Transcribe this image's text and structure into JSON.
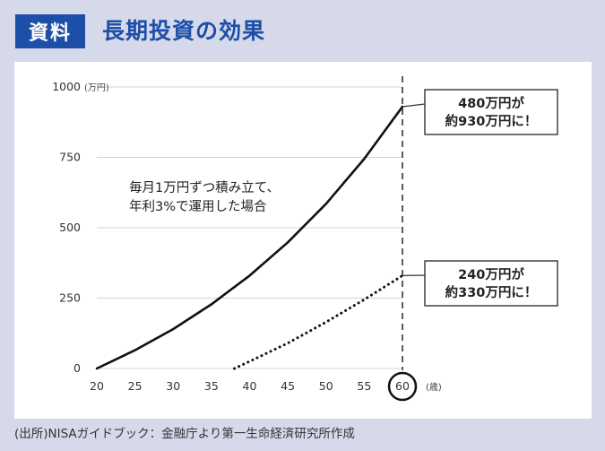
{
  "header": {
    "badge": "資料",
    "title": "長期投資の効果"
  },
  "source_note": "(出所)NISAガイドブック：金融庁より第一生命経済研究所作成",
  "colors": {
    "accent": "#1e4fa8",
    "page_bg": "#d6d9ea",
    "panel_bg": "#ffffff",
    "line": "#111111",
    "grid": "#d4d4d4"
  },
  "chart_data": {
    "type": "line",
    "title": "",
    "xlabel": "",
    "ylabel": "",
    "y_unit": "(万円)",
    "x_unit": "(歳)",
    "xlim": [
      20,
      60
    ],
    "ylim": [
      0,
      1000
    ],
    "x_ticks": [
      20,
      25,
      30,
      35,
      40,
      45,
      50,
      55,
      60
    ],
    "y_ticks": [
      0,
      250,
      500,
      750,
      1000
    ],
    "highlight_x": 60,
    "grid": true,
    "annotation": [
      "毎月1万円ずつ積み立て、",
      "年利3%で運用した場合"
    ],
    "series": [
      {
        "style": "solid",
        "x": [
          20,
          25,
          30,
          35,
          40,
          45,
          50,
          55,
          60
        ],
        "y": [
          0,
          65,
          140,
          228,
          330,
          448,
          585,
          745,
          930
        ]
      },
      {
        "style": "dotted",
        "x": [
          38,
          40,
          45,
          50,
          55,
          60
        ],
        "y": [
          0,
          25,
          90,
          165,
          245,
          330
        ]
      }
    ],
    "callouts": [
      {
        "lines": [
          "480万円が",
          "約930万円に！"
        ],
        "x": 60,
        "y": 930
      },
      {
        "lines": [
          "240万円が",
          "約330万円に！"
        ],
        "x": 60,
        "y": 330
      }
    ]
  }
}
